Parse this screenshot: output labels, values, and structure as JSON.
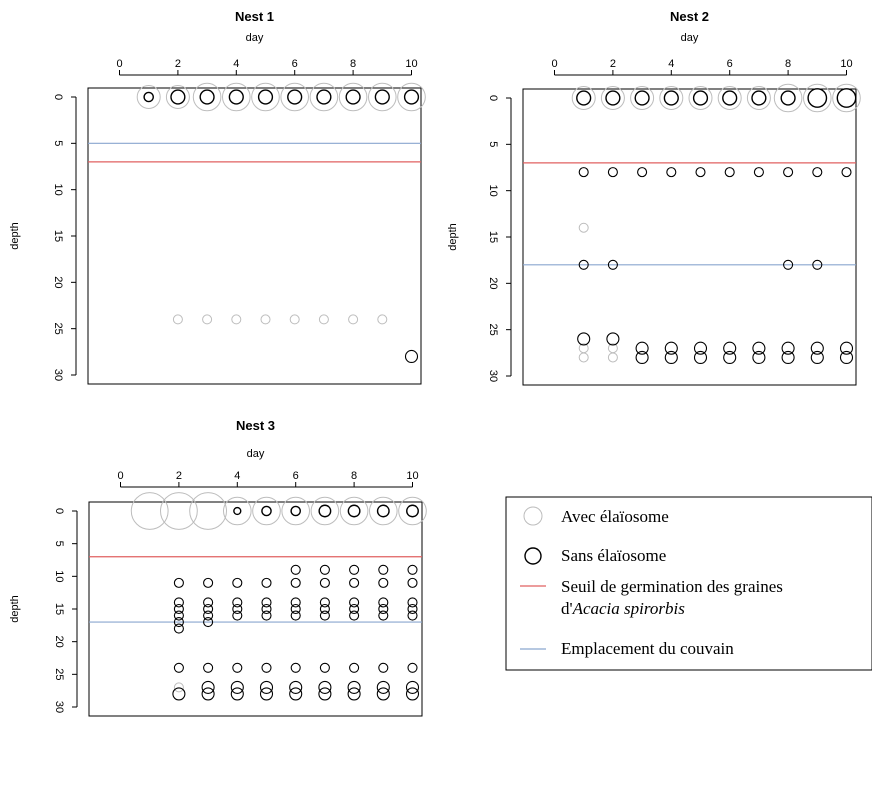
{
  "colors": {
    "with_elaiosome": "#bdbdbd",
    "without_elaiosome": "#000000",
    "germination_threshold": "#e06060",
    "brood_location": "#8aa6cf"
  },
  "legend": {
    "items": [
      {
        "label": "Avec élaïosome",
        "kind": "circle",
        "color": "#bdbdbd"
      },
      {
        "label": "Sans élaïosome",
        "kind": "circle",
        "color": "#000000"
      },
      {
        "label_line1": "Seuil de germination des graines",
        "label_line2_prefix": "d'",
        "label_line2_italic": "Acacia spirorbis",
        "kind": "line",
        "color": "#e06060"
      },
      {
        "label": "Emplacement du couvain",
        "kind": "line",
        "color": "#8aa6cf"
      }
    ]
  },
  "chart_data": [
    {
      "type": "scatter",
      "title": "Nest 1",
      "xlabel": "day",
      "ylabel": "depth",
      "xlim": [
        0,
        10
      ],
      "ylim": [
        0,
        30
      ],
      "y_inverted": true,
      "x_axis_position": "top",
      "xticks": [
        0,
        2,
        4,
        6,
        8,
        10
      ],
      "yticks": [
        0,
        5,
        10,
        15,
        20,
        25,
        30
      ],
      "grid": false,
      "hlines": [
        {
          "y": 5,
          "color": "#8aa6cf"
        },
        {
          "y": 7,
          "color": "#e06060"
        }
      ],
      "surface": {
        "x": [
          1,
          2,
          3,
          4,
          5,
          6,
          7,
          8,
          9,
          10
        ],
        "grey_size": [
          5,
          5,
          6,
          6,
          6,
          6,
          6,
          6,
          6,
          6
        ],
        "black_size": [
          2,
          3,
          3,
          3,
          3,
          3,
          3,
          3,
          3,
          3
        ]
      },
      "points_with": [
        {
          "x": 2,
          "y": 24
        },
        {
          "x": 3,
          "y": 24
        },
        {
          "x": 4,
          "y": 24
        },
        {
          "x": 5,
          "y": 24
        },
        {
          "x": 6,
          "y": 24
        },
        {
          "x": 7,
          "y": 24
        },
        {
          "x": 8,
          "y": 24
        },
        {
          "x": 9,
          "y": 24
        }
      ],
      "points_without": [
        {
          "x": 10,
          "y": 28
        }
      ]
    },
    {
      "type": "scatter",
      "title": "Nest 2",
      "xlabel": "day",
      "ylabel": "depth",
      "xlim": [
        0,
        10
      ],
      "ylim": [
        0,
        30
      ],
      "y_inverted": true,
      "x_axis_position": "top",
      "xticks": [
        0,
        2,
        4,
        6,
        8,
        10
      ],
      "yticks": [
        0,
        5,
        10,
        15,
        20,
        25,
        30
      ],
      "grid": false,
      "hlines": [
        {
          "y": 7,
          "color": "#e06060"
        },
        {
          "y": 18,
          "color": "#8aa6cf"
        }
      ],
      "surface": {
        "x": [
          1,
          2,
          3,
          4,
          5,
          6,
          7,
          8,
          9,
          10
        ],
        "grey_size": [
          5,
          5,
          5,
          5,
          5,
          5,
          5,
          6,
          6,
          6
        ],
        "black_size": [
          3,
          3,
          3,
          3,
          3,
          3,
          3,
          3,
          4,
          4
        ]
      },
      "points_with": [
        {
          "x": 1,
          "y": 14
        },
        {
          "x": 1,
          "y": 27
        },
        {
          "x": 1,
          "y": 28
        },
        {
          "x": 2,
          "y": 27
        },
        {
          "x": 2,
          "y": 28
        }
      ],
      "points_without": [
        {
          "x": 1,
          "y": 8
        },
        {
          "x": 2,
          "y": 8
        },
        {
          "x": 3,
          "y": 8
        },
        {
          "x": 4,
          "y": 8
        },
        {
          "x": 5,
          "y": 8
        },
        {
          "x": 6,
          "y": 8
        },
        {
          "x": 7,
          "y": 8
        },
        {
          "x": 8,
          "y": 8
        },
        {
          "x": 9,
          "y": 8
        },
        {
          "x": 10,
          "y": 8
        },
        {
          "x": 1,
          "y": 18
        },
        {
          "x": 2,
          "y": 18
        },
        {
          "x": 8,
          "y": 18
        },
        {
          "x": 9,
          "y": 18
        },
        {
          "x": 1,
          "y": 26
        },
        {
          "x": 2,
          "y": 26
        },
        {
          "x": 3,
          "y": 27
        },
        {
          "x": 3,
          "y": 28
        },
        {
          "x": 4,
          "y": 27
        },
        {
          "x": 4,
          "y": 28
        },
        {
          "x": 5,
          "y": 27
        },
        {
          "x": 5,
          "y": 28
        },
        {
          "x": 6,
          "y": 27
        },
        {
          "x": 6,
          "y": 28
        },
        {
          "x": 7,
          "y": 27
        },
        {
          "x": 7,
          "y": 28
        },
        {
          "x": 8,
          "y": 27
        },
        {
          "x": 8,
          "y": 28
        },
        {
          "x": 9,
          "y": 27
        },
        {
          "x": 9,
          "y": 28
        },
        {
          "x": 10,
          "y": 27
        },
        {
          "x": 10,
          "y": 28
        }
      ]
    },
    {
      "type": "scatter",
      "title": "Nest 3",
      "xlabel": "day",
      "ylabel": "depth",
      "xlim": [
        0,
        10
      ],
      "ylim": [
        0,
        30
      ],
      "y_inverted": true,
      "x_axis_position": "top",
      "xticks": [
        0,
        2,
        4,
        6,
        8,
        10
      ],
      "yticks": [
        0,
        5,
        10,
        15,
        20,
        25,
        30
      ],
      "grid": false,
      "hlines": [
        {
          "y": 7,
          "color": "#e06060"
        },
        {
          "y": 17,
          "color": "#8aa6cf"
        }
      ],
      "surface": {
        "x": [
          1,
          2,
          3,
          4,
          5,
          6,
          7,
          8,
          9,
          10
        ],
        "grey_size": [
          8,
          8,
          8,
          6,
          6,
          6,
          6,
          6,
          6,
          6
        ],
        "black_size": [
          0,
          0,
          0,
          1.5,
          2,
          2,
          2.5,
          2.5,
          2.5,
          2.5
        ]
      },
      "points_with": [
        {
          "x": 2,
          "y": 27
        }
      ],
      "points_without": [
        {
          "x": 2,
          "y": 11
        },
        {
          "x": 2,
          "y": 14
        },
        {
          "x": 2,
          "y": 15
        },
        {
          "x": 2,
          "y": 16
        },
        {
          "x": 2,
          "y": 17
        },
        {
          "x": 2,
          "y": 18
        },
        {
          "x": 2,
          "y": 24
        },
        {
          "x": 2,
          "y": 28
        },
        {
          "x": 3,
          "y": 11
        },
        {
          "x": 3,
          "y": 14
        },
        {
          "x": 3,
          "y": 15
        },
        {
          "x": 3,
          "y": 16
        },
        {
          "x": 3,
          "y": 17
        },
        {
          "x": 3,
          "y": 24
        },
        {
          "x": 3,
          "y": 27
        },
        {
          "x": 3,
          "y": 28
        },
        {
          "x": 4,
          "y": 11
        },
        {
          "x": 4,
          "y": 14
        },
        {
          "x": 4,
          "y": 15
        },
        {
          "x": 4,
          "y": 16
        },
        {
          "x": 4,
          "y": 24
        },
        {
          "x": 4,
          "y": 27
        },
        {
          "x": 4,
          "y": 28
        },
        {
          "x": 5,
          "y": 11
        },
        {
          "x": 5,
          "y": 14
        },
        {
          "x": 5,
          "y": 15
        },
        {
          "x": 5,
          "y": 16
        },
        {
          "x": 5,
          "y": 24
        },
        {
          "x": 5,
          "y": 27
        },
        {
          "x": 5,
          "y": 28
        },
        {
          "x": 6,
          "y": 9
        },
        {
          "x": 6,
          "y": 11
        },
        {
          "x": 6,
          "y": 14
        },
        {
          "x": 6,
          "y": 15
        },
        {
          "x": 6,
          "y": 16
        },
        {
          "x": 6,
          "y": 24
        },
        {
          "x": 6,
          "y": 27
        },
        {
          "x": 6,
          "y": 28
        },
        {
          "x": 7,
          "y": 9
        },
        {
          "x": 7,
          "y": 11
        },
        {
          "x": 7,
          "y": 14
        },
        {
          "x": 7,
          "y": 15
        },
        {
          "x": 7,
          "y": 16
        },
        {
          "x": 7,
          "y": 24
        },
        {
          "x": 7,
          "y": 27
        },
        {
          "x": 7,
          "y": 28
        },
        {
          "x": 8,
          "y": 9
        },
        {
          "x": 8,
          "y": 11
        },
        {
          "x": 8,
          "y": 14
        },
        {
          "x": 8,
          "y": 15
        },
        {
          "x": 8,
          "y": 16
        },
        {
          "x": 8,
          "y": 24
        },
        {
          "x": 8,
          "y": 27
        },
        {
          "x": 8,
          "y": 28
        },
        {
          "x": 9,
          "y": 9
        },
        {
          "x": 9,
          "y": 11
        },
        {
          "x": 9,
          "y": 14
        },
        {
          "x": 9,
          "y": 15
        },
        {
          "x": 9,
          "y": 16
        },
        {
          "x": 9,
          "y": 24
        },
        {
          "x": 9,
          "y": 27
        },
        {
          "x": 9,
          "y": 28
        },
        {
          "x": 10,
          "y": 9
        },
        {
          "x": 10,
          "y": 11
        },
        {
          "x": 10,
          "y": 14
        },
        {
          "x": 10,
          "y": 15
        },
        {
          "x": 10,
          "y": 16
        },
        {
          "x": 10,
          "y": 24
        },
        {
          "x": 10,
          "y": 27
        },
        {
          "x": 10,
          "y": 28
        }
      ]
    }
  ]
}
